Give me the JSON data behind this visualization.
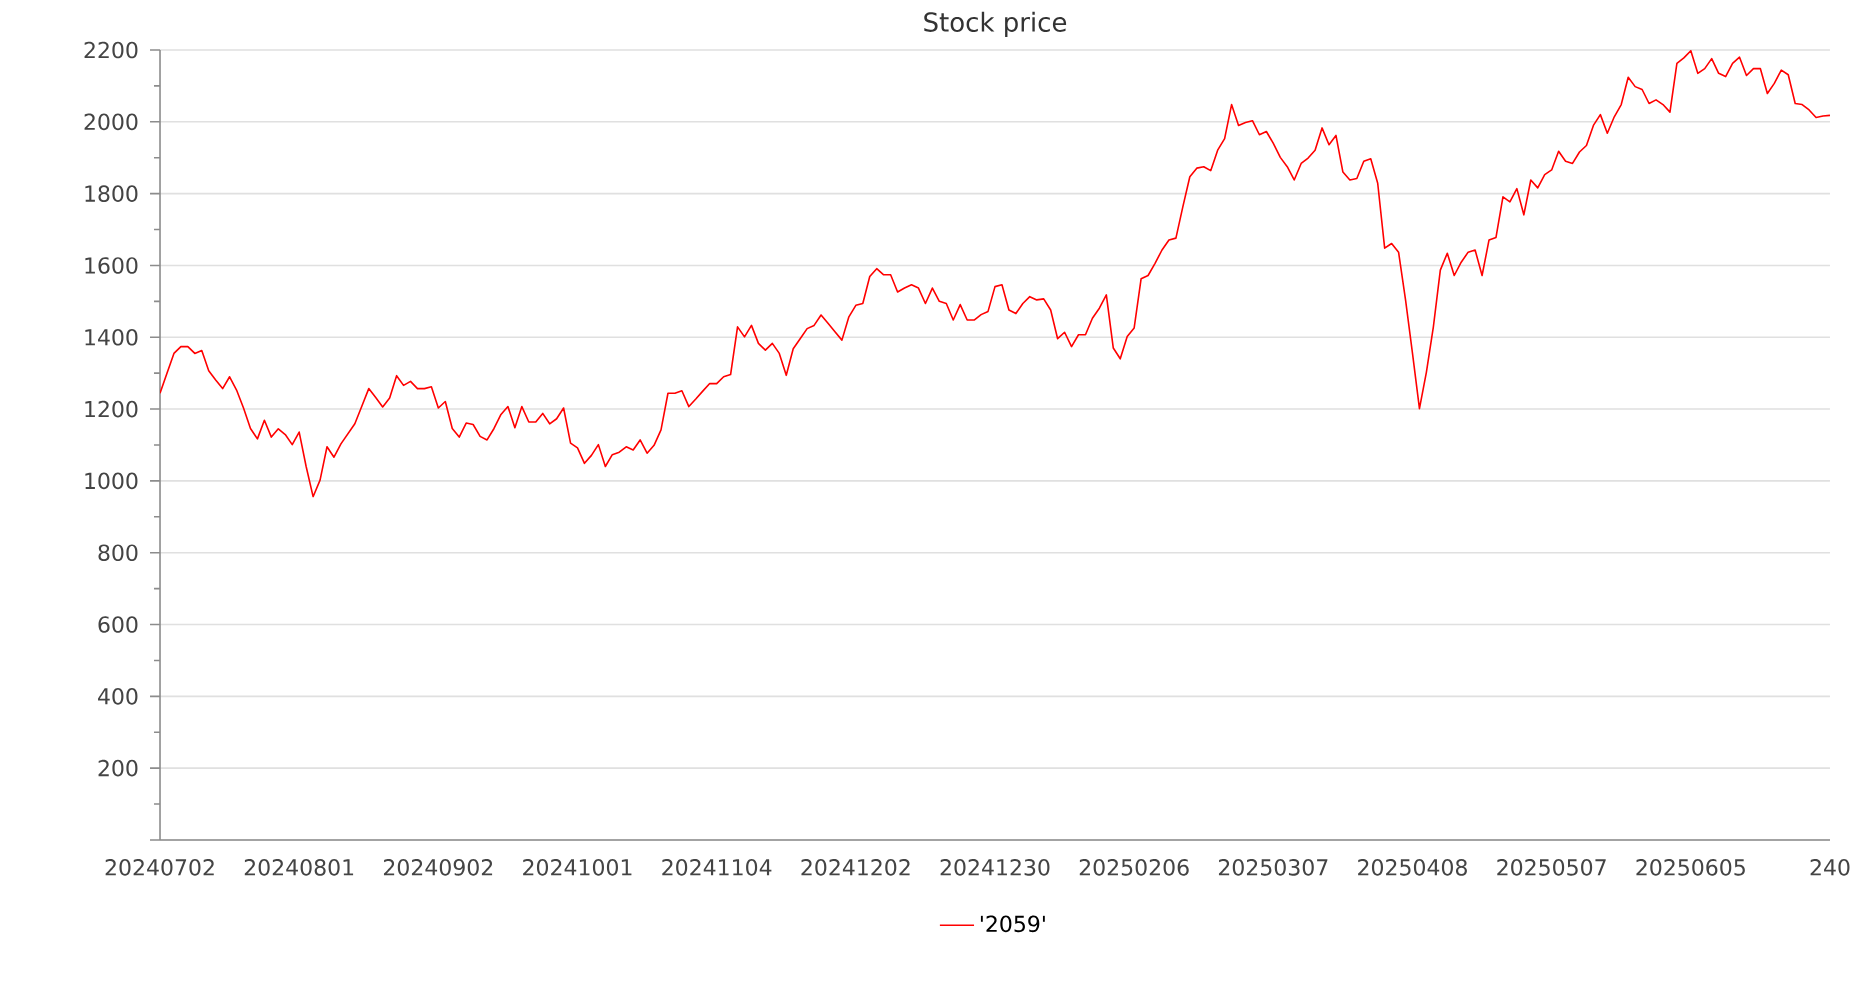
{
  "chart_data": {
    "type": "line",
    "title": "Stock price",
    "categories": [
      "20240702",
      null,
      null,
      null,
      null,
      null,
      null,
      null,
      null,
      null,
      null,
      null,
      null,
      null,
      null,
      null,
      null,
      null,
      null,
      null,
      "20240801",
      null,
      null,
      null,
      null,
      null,
      null,
      null,
      null,
      null,
      null,
      null,
      null,
      null,
      null,
      null,
      null,
      null,
      null,
      null,
      "20240902",
      null,
      null,
      null,
      null,
      null,
      null,
      null,
      null,
      null,
      null,
      null,
      null,
      null,
      null,
      null,
      null,
      null,
      null,
      null,
      "20241001",
      null,
      null,
      null,
      null,
      null,
      null,
      null,
      null,
      null,
      null,
      null,
      null,
      null,
      null,
      null,
      null,
      null,
      null,
      null,
      "20241104",
      null,
      null,
      null,
      null,
      null,
      null,
      null,
      null,
      null,
      null,
      null,
      null,
      null,
      null,
      null,
      null,
      null,
      null,
      null,
      "20241202",
      null,
      null,
      null,
      null,
      null,
      null,
      null,
      null,
      null,
      null,
      null,
      null,
      null,
      null,
      null,
      null,
      null,
      null,
      null,
      "20241230",
      null,
      null,
      null,
      null,
      null,
      null,
      null,
      null,
      null,
      null,
      null,
      null,
      null,
      null,
      null,
      null,
      null,
      null,
      null,
      "20250206",
      null,
      null,
      null,
      null,
      null,
      null,
      null,
      null,
      null,
      null,
      null,
      null,
      null,
      null,
      null,
      null,
      null,
      null,
      null,
      "20250307",
      null,
      null,
      null,
      null,
      null,
      null,
      null,
      null,
      null,
      null,
      null,
      null,
      null,
      null,
      null,
      null,
      null,
      null,
      null,
      "20250408",
      null,
      null,
      null,
      null,
      null,
      null,
      null,
      null,
      null,
      null,
      null,
      null,
      null,
      null,
      null,
      null,
      null,
      null,
      null,
      "20250507",
      null,
      null,
      null,
      null,
      null,
      null,
      null,
      null,
      null,
      null,
      null,
      null,
      null,
      null,
      null,
      null,
      null,
      null,
      null,
      "20250605",
      null,
      null,
      null,
      null,
      null,
      null,
      null,
      null,
      null,
      null,
      null,
      null,
      null,
      null,
      null,
      null,
      null,
      null,
      null,
      "240"
    ],
    "ylim": [
      0,
      2200
    ],
    "yticks": [
      {
        "value": 0,
        "label": null
      },
      200,
      400,
      600,
      800,
      1000,
      1200,
      1400,
      1600,
      1800,
      2000,
      2200
    ],
    "grid": "y",
    "legend": "bottom",
    "series": [
      {
        "name": "'2059'",
        "color": "#ff0000",
        "values": [
          1244,
          1300,
          1355,
          1374,
          1374,
          1355,
          1363,
          1307,
          1281,
          1257,
          1290,
          1253,
          1203,
          1146,
          1117,
          1169,
          1122,
          1145,
          1129,
          1101,
          1136,
          1040,
          956,
          1002,
          1095,
          1066,
          1103,
          1131,
          1159,
          1208,
          1257,
          1232,
          1206,
          1231,
          1293,
          1266,
          1277,
          1257,
          1257,
          1262,
          1203,
          1221,
          1146,
          1122,
          1161,
          1157,
          1124,
          1114,
          1146,
          1185,
          1207,
          1148,
          1207,
          1164,
          1164,
          1188,
          1159,
          1173,
          1203,
          1105,
          1092,
          1049,
          1071,
          1101,
          1040,
          1073,
          1080,
          1095,
          1086,
          1114,
          1077,
          1099,
          1142,
          1244,
          1244,
          1251,
          1207,
          1228,
          1250,
          1271,
          1271,
          1290,
          1296,
          1429,
          1401,
          1433,
          1383,
          1364,
          1383,
          1355,
          1294,
          1368,
          1396,
          1424,
          1433,
          1462,
          1439,
          1415,
          1392,
          1457,
          1489,
          1494,
          1569,
          1591,
          1574,
          1574,
          1526,
          1537,
          1546,
          1537,
          1494,
          1537,
          1500,
          1494,
          1448,
          1491,
          1448,
          1448,
          1463,
          1472,
          1541,
          1546,
          1476,
          1466,
          1494,
          1513,
          1504,
          1507,
          1476,
          1396,
          1414,
          1374,
          1407,
          1407,
          1453,
          1481,
          1518,
          1370,
          1340,
          1402,
          1426,
          1563,
          1572,
          1606,
          1643,
          1671,
          1676,
          1764,
          1847,
          1871,
          1875,
          1864,
          1921,
          1953,
          2048,
          1990,
          1998,
          2003,
          1964,
          1973,
          1940,
          1901,
          1875,
          1838,
          1884,
          1899,
          1921,
          1983,
          1936,
          1962,
          1860,
          1838,
          1842,
          1890,
          1897,
          1829,
          1648,
          1661,
          1637,
          1504,
          1355,
          1201,
          1303,
          1429,
          1587,
          1634,
          1572,
          1609,
          1637,
          1643,
          1572,
          1671,
          1678,
          1791,
          1777,
          1814,
          1741,
          1838,
          1816,
          1853,
          1866,
          1918,
          1890,
          1884,
          1916,
          1934,
          1990,
          2020,
          1968,
          2014,
          2048,
          2124,
          2098,
          2090,
          2051,
          2061,
          2048,
          2027,
          2163,
          2178,
          2198,
          2135,
          2148,
          2176,
          2135,
          2126,
          2163,
          2180,
          2129,
          2148,
          2148,
          2079,
          2107,
          2144,
          2131,
          2051,
          2048,
          2033,
          2012,
          2016,
          2018
        ]
      }
    ]
  }
}
